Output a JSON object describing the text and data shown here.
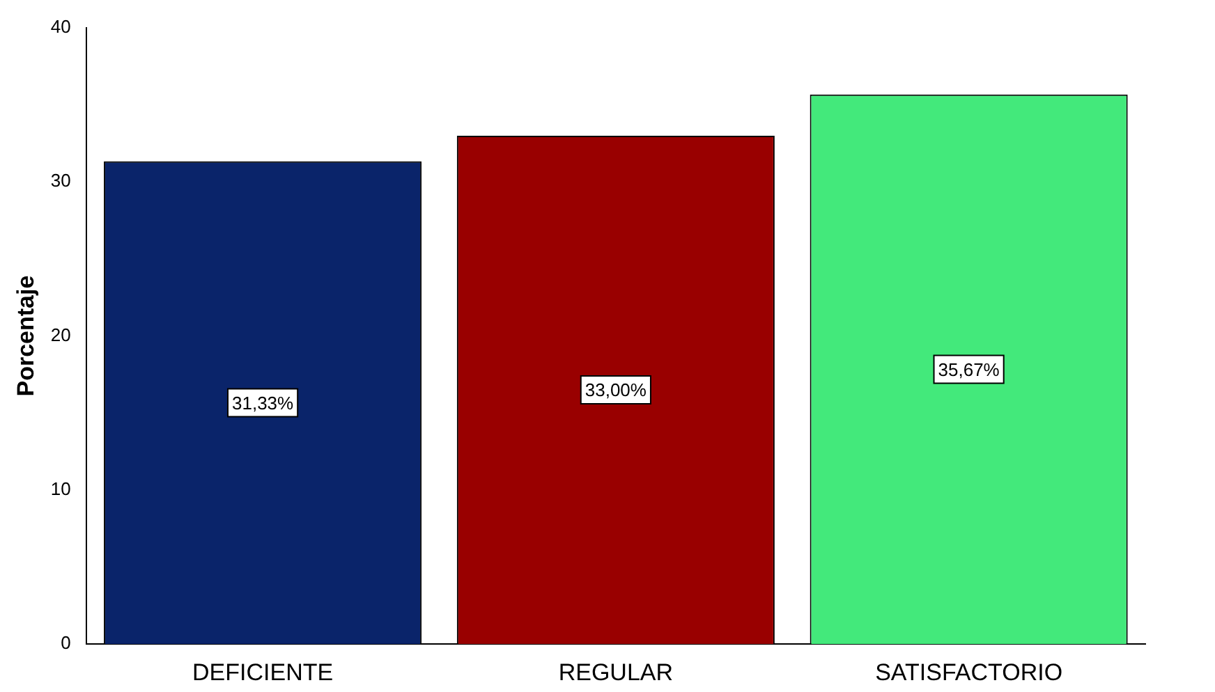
{
  "chart_data": {
    "type": "bar",
    "ylabel": "Porcentaje",
    "categories": [
      "DEFICIENTE",
      "REGULAR",
      "SATISFACTORIO"
    ],
    "values": [
      31.33,
      33.0,
      35.67
    ],
    "colors": [
      "#0a246a",
      "#990000",
      "#43e97b"
    ],
    "value_labels": [
      "31,33%",
      "33,00%",
      "35,67%"
    ],
    "ylim": [
      0,
      40
    ],
    "yticks": [
      0,
      10,
      20,
      30,
      40
    ],
    "grid": false,
    "legend": false
  }
}
